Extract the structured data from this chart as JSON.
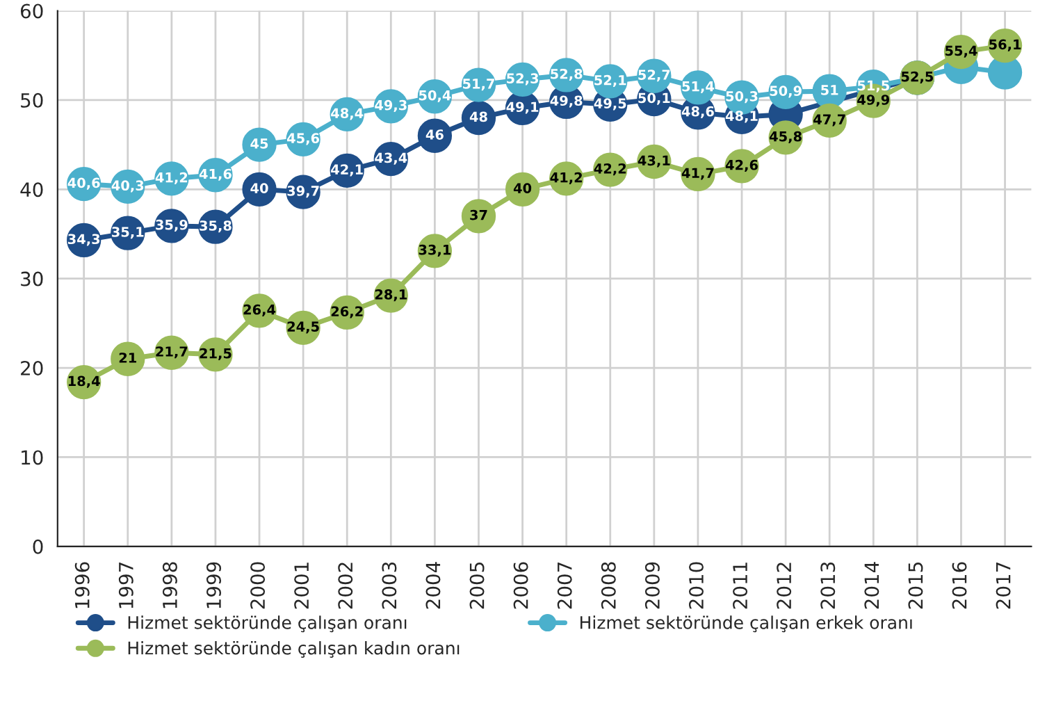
{
  "chart_data": {
    "type": "line",
    "categories": [
      "1996",
      "1997",
      "1998",
      "1999",
      "2000",
      "2001",
      "2002",
      "2003",
      "2004",
      "2005",
      "2006",
      "2007",
      "2008",
      "2009",
      "2010",
      "2011",
      "2012",
      "2013",
      "2014",
      "2015",
      "2016",
      "2017"
    ],
    "series": [
      {
        "name": "Hizmet sektöründe çalışan oranı",
        "color": "#1f4e89",
        "values": [
          34.3,
          35.1,
          35.9,
          35.8,
          40,
          39.7,
          42.1,
          43.4,
          46,
          48,
          49.1,
          49.8,
          49.5,
          50.1,
          48.6,
          48.1,
          48.4,
          null,
          null,
          52.5,
          null,
          null
        ],
        "value_labels": [
          "34,3",
          "35,1",
          "35,9",
          "35,8",
          "40",
          "39,7",
          "42,1",
          "43,4",
          "46",
          "48",
          "49,1",
          "49,8",
          "49,5",
          "50,1",
          "48,6",
          "48,1",
          null,
          null,
          null,
          null,
          null,
          null
        ]
      },
      {
        "name": "Hizmet sektöründe çalışan erkek oranı",
        "color": "#4bb0cc",
        "values": [
          40.6,
          40.3,
          41.2,
          41.6,
          45,
          45.6,
          48.4,
          49.3,
          50.4,
          51.7,
          52.3,
          52.8,
          52.1,
          52.7,
          51.4,
          50.3,
          50.9,
          51,
          51.5,
          52.5,
          53.7,
          53.1
        ],
        "value_labels": [
          "40,6",
          "40,3",
          "41,2",
          "41,6",
          "45",
          "45,6",
          "48,4",
          "49,3",
          "50,4",
          "51,7",
          "52,3",
          "52,8",
          "52,1",
          "52,7",
          "51,4",
          "50,3",
          "50,9",
          "51",
          "51,5",
          null,
          null,
          null
        ]
      },
      {
        "name": "Hizmet sektöründe çalışan kadın oranı",
        "color": "#9bbb59",
        "values": [
          18.4,
          21,
          21.7,
          21.5,
          26.4,
          24.5,
          26.2,
          28.1,
          33.1,
          37,
          40,
          41.2,
          42.2,
          43.1,
          41.7,
          42.6,
          45.8,
          47.7,
          49.9,
          52.5,
          55.4,
          56.1
        ],
        "value_labels": [
          "18,4",
          "21",
          "21,7",
          "21,5",
          "26,4",
          "24,5",
          "26,2",
          "28,1",
          "33,1",
          "37",
          "40",
          "41,2",
          "42,2",
          "43,1",
          "41,7",
          "42,6",
          "45,8",
          "47,7",
          "49,9",
          "52,5",
          "55,4",
          "56,1"
        ]
      }
    ],
    "ylim": [
      0,
      60
    ],
    "yticks": [
      0,
      10,
      20,
      30,
      40,
      50,
      60
    ],
    "grid": true,
    "marker": "circle",
    "legend": "bottom"
  }
}
